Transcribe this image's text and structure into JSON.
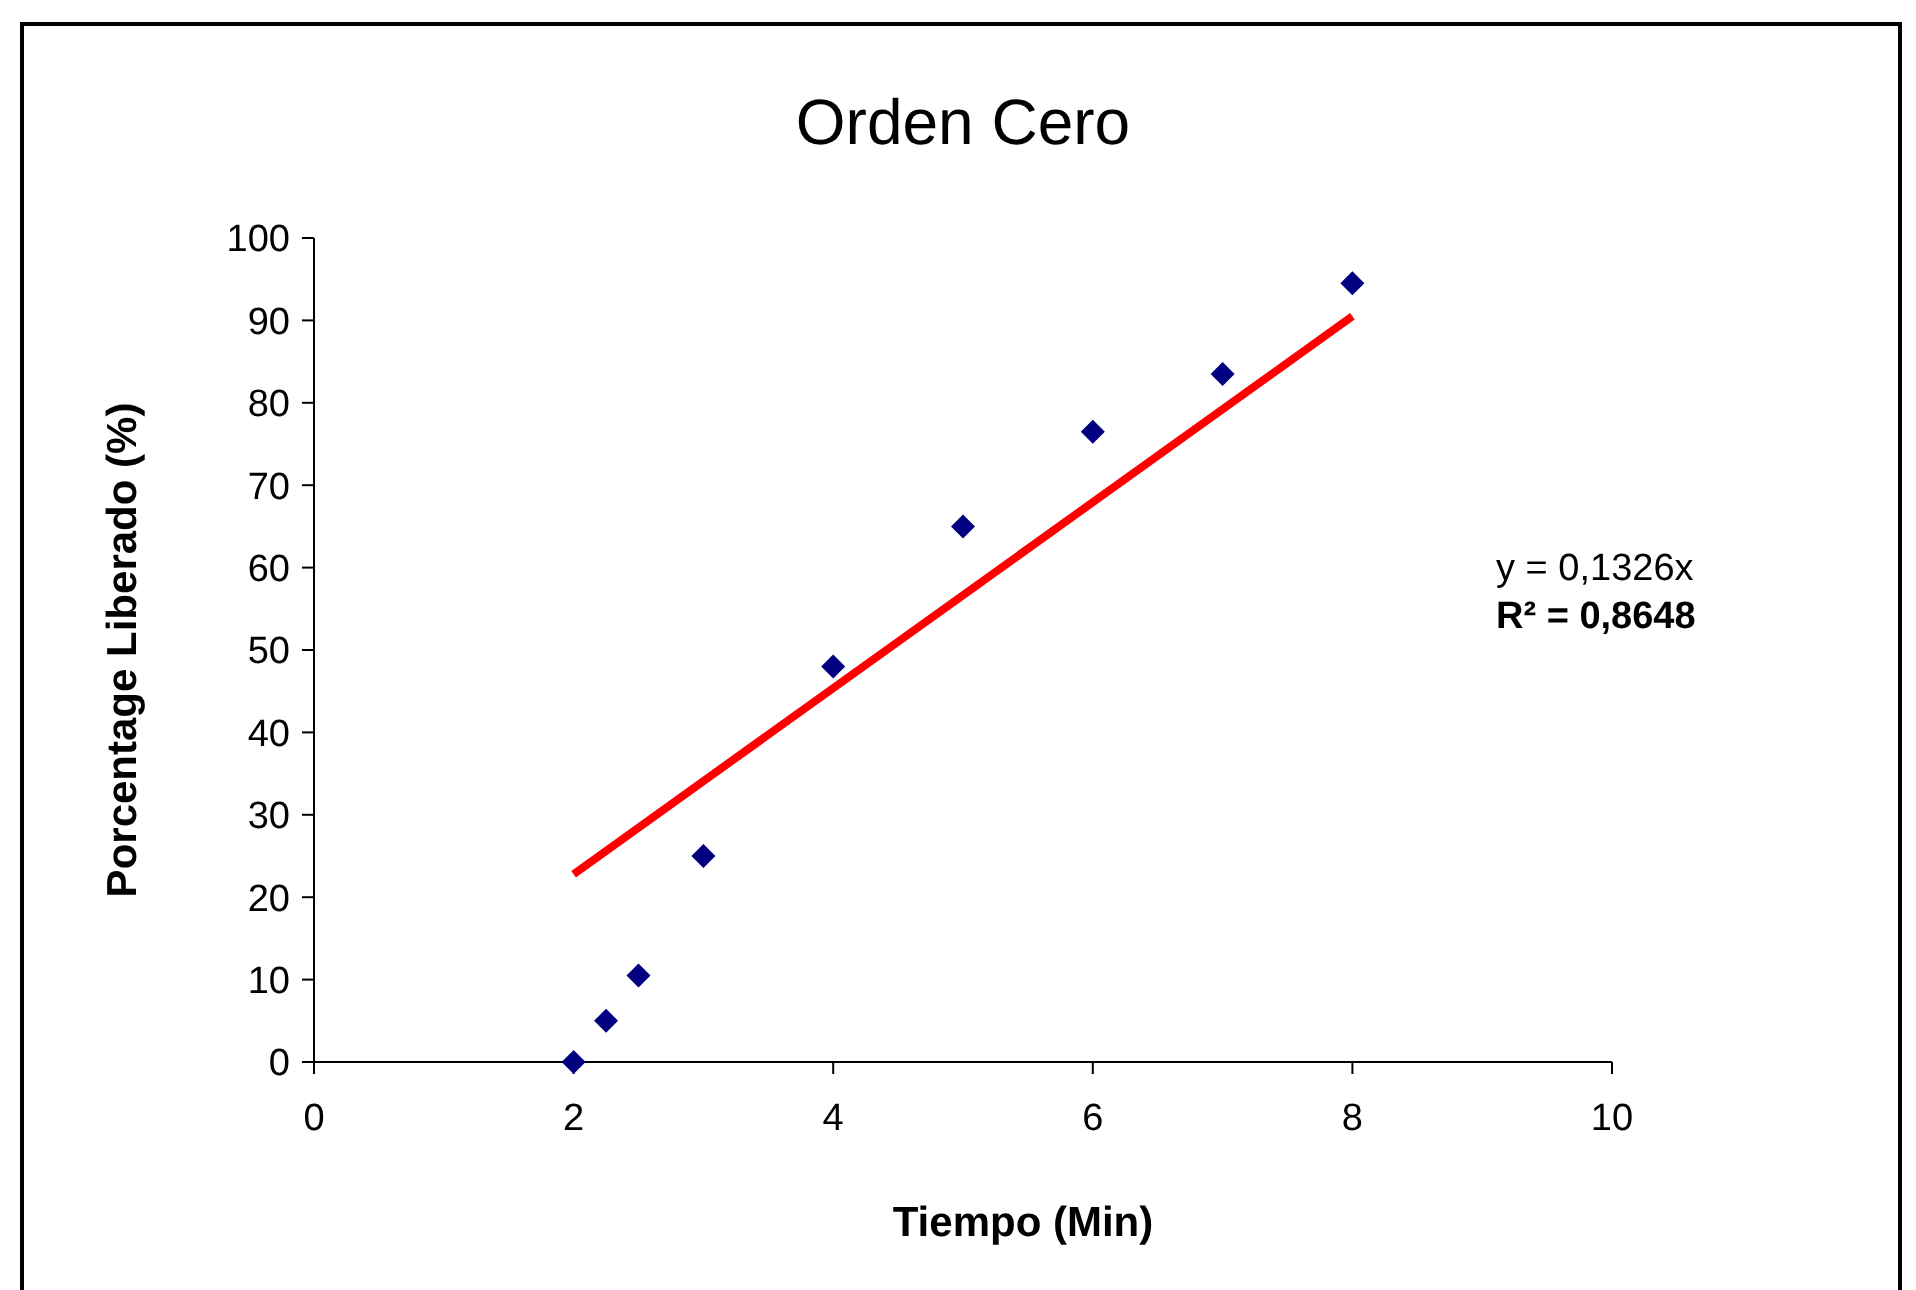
{
  "chart_data": {
    "type": "scatter",
    "title": "Orden Cero",
    "xlabel": "Tiempo (Min)",
    "ylabel": "Porcentage Liberado (%)",
    "xlim": [
      0,
      10
    ],
    "xticks": [
      0,
      2,
      4,
      6,
      8,
      10
    ],
    "ylim": [
      0,
      100
    ],
    "yticks": [
      0,
      10,
      20,
      30,
      40,
      50,
      60,
      70,
      80,
      90,
      100
    ],
    "grid": false,
    "marker": "diamond",
    "series": [
      {
        "color": "#000080",
        "x": [
          2,
          2.25,
          2.5,
          3,
          4,
          5,
          6,
          7,
          8
        ],
        "values": [
          0,
          5,
          10.5,
          25,
          48,
          65,
          76.5,
          83.5,
          94.5
        ]
      },
      {
        "type": "line",
        "color": "#ff0000",
        "marker": "none",
        "line_style": "solid",
        "x": [
          2,
          8
        ],
        "values": [
          22.8,
          90.5
        ]
      }
    ],
    "annotations": [
      "y = 0,1326x",
      "R² = 0,8648"
    ]
  }
}
